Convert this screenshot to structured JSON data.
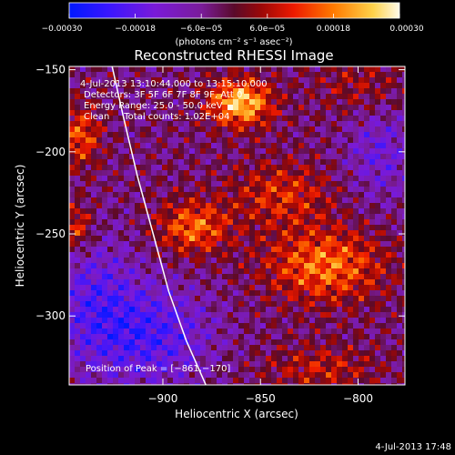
{
  "chart_data": {
    "type": "heatmap",
    "title": "Reconstructed RHESSI Image",
    "xlabel": "Heliocentric X (arcsec)",
    "ylabel": "Heliocentric Y (arcsec)",
    "xlim": [
      -948,
      -776
    ],
    "ylim": [
      -342,
      -148
    ],
    "x_ticks": [
      {
        "value": -900,
        "label": "−900"
      },
      {
        "value": -850,
        "label": "−850"
      },
      {
        "value": -800,
        "label": "−800"
      }
    ],
    "y_ticks": [
      {
        "value": -150,
        "label": "−150"
      },
      {
        "value": -200,
        "label": "−200"
      },
      {
        "value": -250,
        "label": "−250"
      },
      {
        "value": -300,
        "label": "−300"
      }
    ],
    "colorbar": {
      "min": -0.0003,
      "max": 0.0003,
      "units_label": "(photons cm⁻² s⁻¹ asec⁻²)",
      "ticks": [
        {
          "value": -0.0003,
          "label": "−0.00030"
        },
        {
          "value": -0.00018,
          "label": "−0.00018"
        },
        {
          "value": -6e-05,
          "label": "−6.0e−05"
        },
        {
          "value": 6e-05,
          "label": "6.0e−05"
        },
        {
          "value": 0.00018,
          "label": "0.00018"
        },
        {
          "value": 0.0003,
          "label": "0.00030"
        }
      ]
    },
    "annotations": [
      "4-Jul-2013 13:10:44.000 to 13:15:10.000",
      "Detectors: 3F 5F 6F 7F 8F 9F, Att 0",
      "Energy Range: 25.0 - 50.0 keV",
      "Clean     Total counts: 1.02E+04"
    ],
    "peak_label": "Position of Peak = [−861,−170]",
    "peak_position": [
      -861,
      -170
    ],
    "limb_curve": [
      {
        "x": -926,
        "y": -148
      },
      {
        "x": -920,
        "y": -180
      },
      {
        "x": -913,
        "y": -215
      },
      {
        "x": -905,
        "y": -250
      },
      {
        "x": -897,
        "y": -285
      },
      {
        "x": -888,
        "y": -315
      },
      {
        "x": -878,
        "y": -342
      }
    ],
    "grid": false,
    "legend": "none"
  },
  "footer": {
    "timestamp": "4-Jul-2013 17:48"
  },
  "colors": {
    "background": "#000000",
    "text": "#ffffff"
  }
}
